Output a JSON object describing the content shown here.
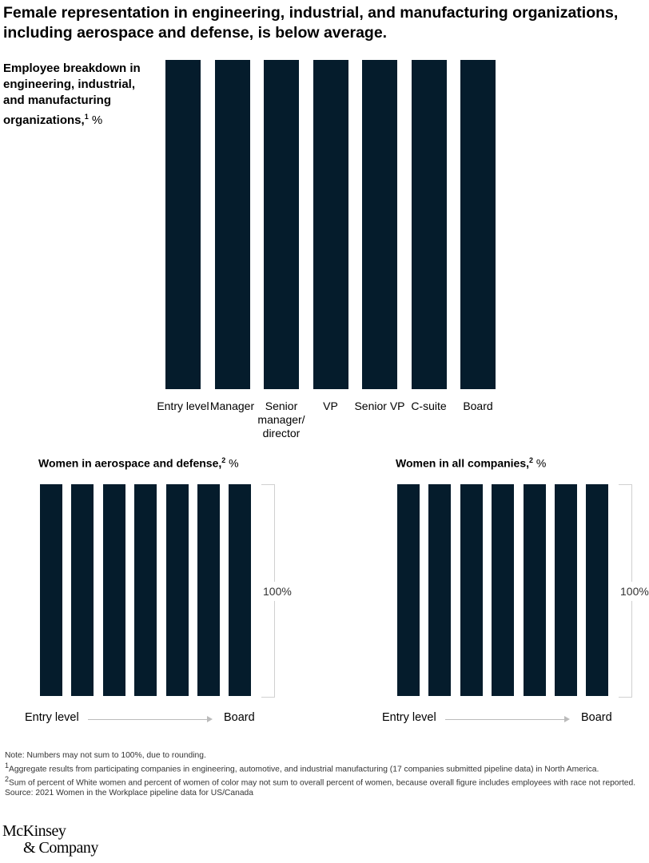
{
  "title": "Female representation in engineering, industrial, and manufacturing organizations, including aerospace and defense, is below average.",
  "colors": {
    "bar": "#051c2c",
    "bracket": "#d0d0d0",
    "arrow": "#bbbbbb"
  },
  "chart_data": [
    {
      "type": "bar",
      "title": "Employee breakdown in engineering, industrial, and manufacturing organizations,",
      "title_sup": "1",
      "unit": "%",
      "categories": [
        "Entry level",
        "Manager",
        "Senior manager/ director",
        "VP",
        "Senior VP",
        "C-suite",
        "Board"
      ],
      "values": [
        100,
        100,
        100,
        100,
        100,
        100,
        100
      ],
      "ylim": [
        0,
        100
      ],
      "grid": false
    },
    {
      "type": "bar",
      "title": "Women in aerospace and defense,",
      "title_sup": "2",
      "unit": "%",
      "values": [
        100,
        100,
        100,
        100,
        100,
        100,
        100
      ],
      "ylim": [
        0,
        100
      ],
      "scale_label": "100%",
      "x_start_label": "Entry level",
      "x_end_label": "Board"
    },
    {
      "type": "bar",
      "title": "Women in all companies,",
      "title_sup": "2",
      "unit": "%",
      "values": [
        100,
        100,
        100,
        100,
        100,
        100,
        100
      ],
      "ylim": [
        0,
        100
      ],
      "scale_label": "100%",
      "x_start_label": "Entry level",
      "x_end_label": "Board"
    }
  ],
  "notes": [
    "Note: Numbers may not sum to 100%, due to rounding.",
    "Aggregate results from participating companies in engineering, automotive, and industrial manufacturing (17 companies submitted pipeline data) in  North America.",
    "Sum of percent of  White women and percent of women of color may not sum to overall percent of women, because overall figure includes employees with race not reported.",
    "Source: 2021 Women in the Workplace pipeline data for US/Canada"
  ],
  "note_sups": [
    "1",
    "2"
  ],
  "logo": {
    "line1": "McKinsey",
    "line2": "& Company"
  }
}
